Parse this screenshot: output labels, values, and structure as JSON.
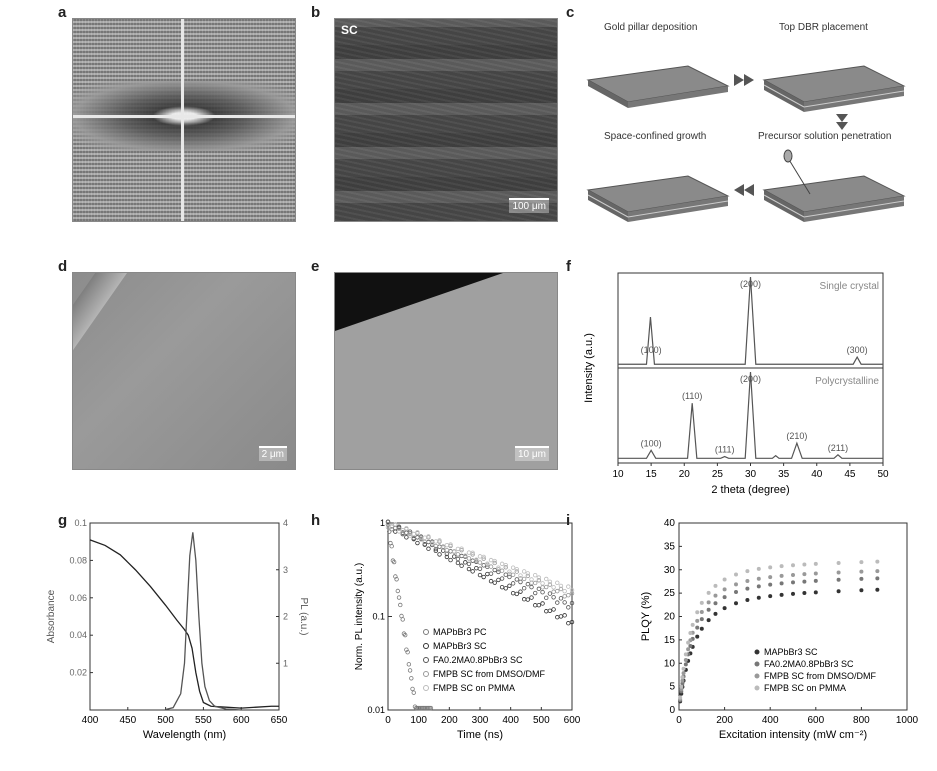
{
  "panels": {
    "a": "a",
    "b": "b",
    "c": "c",
    "d": "d",
    "e": "e",
    "f": "f",
    "g": "g",
    "h": "h",
    "i": "i"
  },
  "images": {
    "b_label": "SC",
    "b_scale": "100 μm",
    "d_scale": "2 μm",
    "e_scale": "10 μm"
  },
  "schematic": {
    "steps": [
      "Gold pillar deposition",
      "Top DBR placement",
      "Space-confined growth",
      "Precursor solution penetration"
    ]
  },
  "chart_data": [
    {
      "id": "f",
      "type": "line",
      "xlabel": "2 theta (degree)",
      "ylabel": "Intensity (a.u.)",
      "xlim": [
        10,
        50
      ],
      "xticks": [
        10,
        15,
        20,
        25,
        30,
        35,
        40,
        45,
        50
      ],
      "series": [
        {
          "name": "Single crystal",
          "x": [
            10,
            14.3,
            14.9,
            15.5,
            29.2,
            30.0,
            30.8,
            45.5,
            46.1,
            46.7,
            50
          ],
          "y": [
            0.02,
            0.02,
            0.55,
            0.02,
            0.02,
            1.0,
            0.02,
            0.02,
            0.1,
            0.02,
            0.02
          ]
        },
        {
          "name": "Polycrystalline",
          "x": [
            10,
            14.3,
            15.0,
            15.7,
            20.5,
            21.2,
            21.9,
            25.5,
            26.1,
            26.7,
            29.2,
            30.0,
            30.8,
            33.3,
            33.8,
            34.3,
            36.2,
            37.0,
            37.8,
            42.6,
            43.2,
            43.8,
            50
          ],
          "y": [
            0.03,
            0.03,
            0.12,
            0.03,
            0.03,
            0.65,
            0.03,
            0.03,
            0.05,
            0.03,
            0.03,
            1.0,
            0.03,
            0.03,
            0.06,
            0.03,
            0.03,
            0.2,
            0.03,
            0.03,
            0.07,
            0.03,
            0.03
          ]
        }
      ],
      "annotations": {
        "top": [
          {
            "label": "(100)",
            "x": 15.0
          },
          {
            "label": "(200)",
            "x": 30.0
          },
          {
            "label": "(300)",
            "x": 46.1
          }
        ],
        "bottom": [
          {
            "label": "(100)",
            "x": 15.0
          },
          {
            "label": "(110)",
            "x": 21.2
          },
          {
            "label": "(111)",
            "x": 26.1
          },
          {
            "label": "(200)",
            "x": 30.0
          },
          {
            "label": "(210)",
            "x": 37.0
          },
          {
            "label": "(211)",
            "x": 43.2
          }
        ]
      }
    },
    {
      "id": "g",
      "type": "line",
      "xlabel": "Wavelength (nm)",
      "ylabel": "Absorbance",
      "ylabel_right": "PL (a.u.)",
      "xlim": [
        400,
        650
      ],
      "ylim": [
        0,
        0.1
      ],
      "xticks": [
        400,
        450,
        500,
        550,
        600,
        650
      ],
      "yticks": [
        0.02,
        0.04,
        0.06,
        0.08,
        0.1
      ],
      "y2lim": [
        0,
        4
      ],
      "y2ticks": [
        1,
        2,
        3,
        4
      ],
      "series": [
        {
          "name": "Absorbance",
          "x": [
            400,
            420,
            440,
            460,
            480,
            500,
            515,
            525,
            530,
            535,
            540,
            545,
            550,
            560,
            580,
            600,
            620,
            640,
            650
          ],
          "y": [
            0.091,
            0.088,
            0.083,
            0.075,
            0.066,
            0.056,
            0.048,
            0.043,
            0.04,
            0.033,
            0.02,
            0.01,
            0.004,
            0.002,
            0.0015,
            0.001,
            0.0015,
            0.002,
            0.002
          ]
        },
        {
          "name": "PL",
          "axis": "right",
          "x": [
            500,
            510,
            520,
            525,
            528,
            532,
            536,
            540,
            544,
            548,
            552,
            558,
            565,
            580,
            600
          ],
          "y": [
            0.01,
            0.05,
            0.35,
            1.0,
            2.0,
            3.3,
            3.8,
            3.2,
            2.0,
            1.0,
            0.5,
            0.2,
            0.08,
            0.02,
            0.0
          ]
        }
      ]
    },
    {
      "id": "h",
      "type": "scatter",
      "xlabel": "Time (ns)",
      "ylabel": "Norm. PL intensity (a.u.)",
      "xlim": [
        0,
        600
      ],
      "ylim": [
        0.01,
        1
      ],
      "yscale": "log",
      "xticks": [
        0,
        100,
        200,
        300,
        400,
        500,
        600
      ],
      "ytick_labels": [
        "1",
        "0.1",
        "0.01"
      ],
      "legend": "bottom-right",
      "series": [
        {
          "name": "MAPbBr3 PC",
          "tau": 20,
          "color": "#7a7a7a"
        },
        {
          "name": "MAPbBr3 SC",
          "tau": 250,
          "color": "#333333"
        },
        {
          "name": "FA0.2MA0.8PbBr3 SC",
          "tau": 300,
          "color": "#555555"
        },
        {
          "name": "FMPB SC from DMSO/DMF",
          "tau": 340,
          "color": "#999999"
        },
        {
          "name": "FMPB SC on PMMA",
          "tau": 370,
          "color": "#bbbbbb"
        }
      ]
    },
    {
      "id": "i",
      "type": "scatter",
      "xlabel": "Excitation intensity (mW cm⁻²)",
      "ylabel": "PLQY (%)",
      "xlim": [
        0,
        1000
      ],
      "ylim": [
        0,
        40
      ],
      "xticks": [
        0,
        200,
        400,
        600,
        800,
        1000
      ],
      "yticks": [
        0,
        5,
        10,
        15,
        20,
        25,
        30,
        35,
        40
      ],
      "legend": "bottom-right",
      "series": [
        {
          "name": "MAPbBr3 SC",
          "plateau": 28,
          "k": 90,
          "color": "#333333"
        },
        {
          "name": "FA0.2MA0.8PbBr3 SC",
          "plateau": 30.5,
          "k": 85,
          "color": "#777777"
        },
        {
          "name": "FMPB SC from DMSO/DMF",
          "plateau": 32,
          "k": 80,
          "color": "#999999"
        },
        {
          "name": "FMPB SC on PMMA",
          "plateau": 34,
          "k": 75,
          "color": "#bbbbbb"
        }
      ]
    }
  ]
}
